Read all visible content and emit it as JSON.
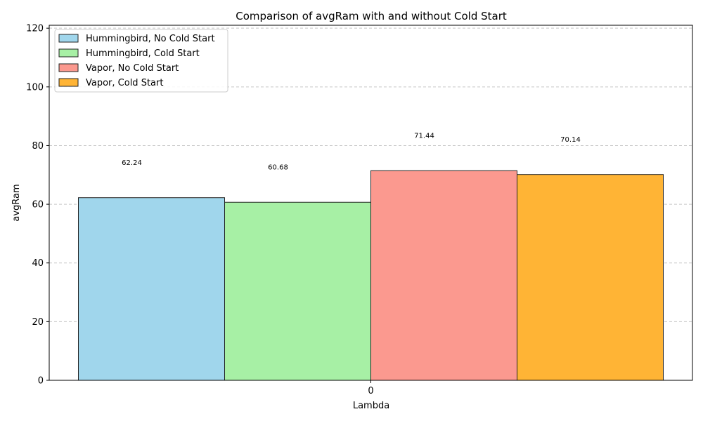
{
  "chart_data": {
    "type": "bar",
    "title": "Comparison of avgRam with and without Cold Start",
    "xlabel": "Lambda",
    "ylabel": "avgRam",
    "categories": [
      "0"
    ],
    "ylim": [
      0,
      121
    ],
    "yticks": [
      0,
      20,
      40,
      60,
      80,
      100,
      120
    ],
    "grid": "y-dashed",
    "legend_position": "top-left",
    "series": [
      {
        "name": "Hummingbird, No Cold Start",
        "values": [
          62.24
        ],
        "value_label": "62.24",
        "color": "#a0d6ec"
      },
      {
        "name": "Hummingbird, Cold Start",
        "values": [
          60.68
        ],
        "value_label": "60.68",
        "color": "#a7f0a5"
      },
      {
        "name": "Vapor, No Cold Start",
        "values": [
          71.44
        ],
        "value_label": "71.44",
        "color": "#fb998f"
      },
      {
        "name": "Vapor, Cold Start",
        "values": [
          70.14
        ],
        "value_label": "70.14",
        "color": "#ffb435"
      }
    ]
  }
}
